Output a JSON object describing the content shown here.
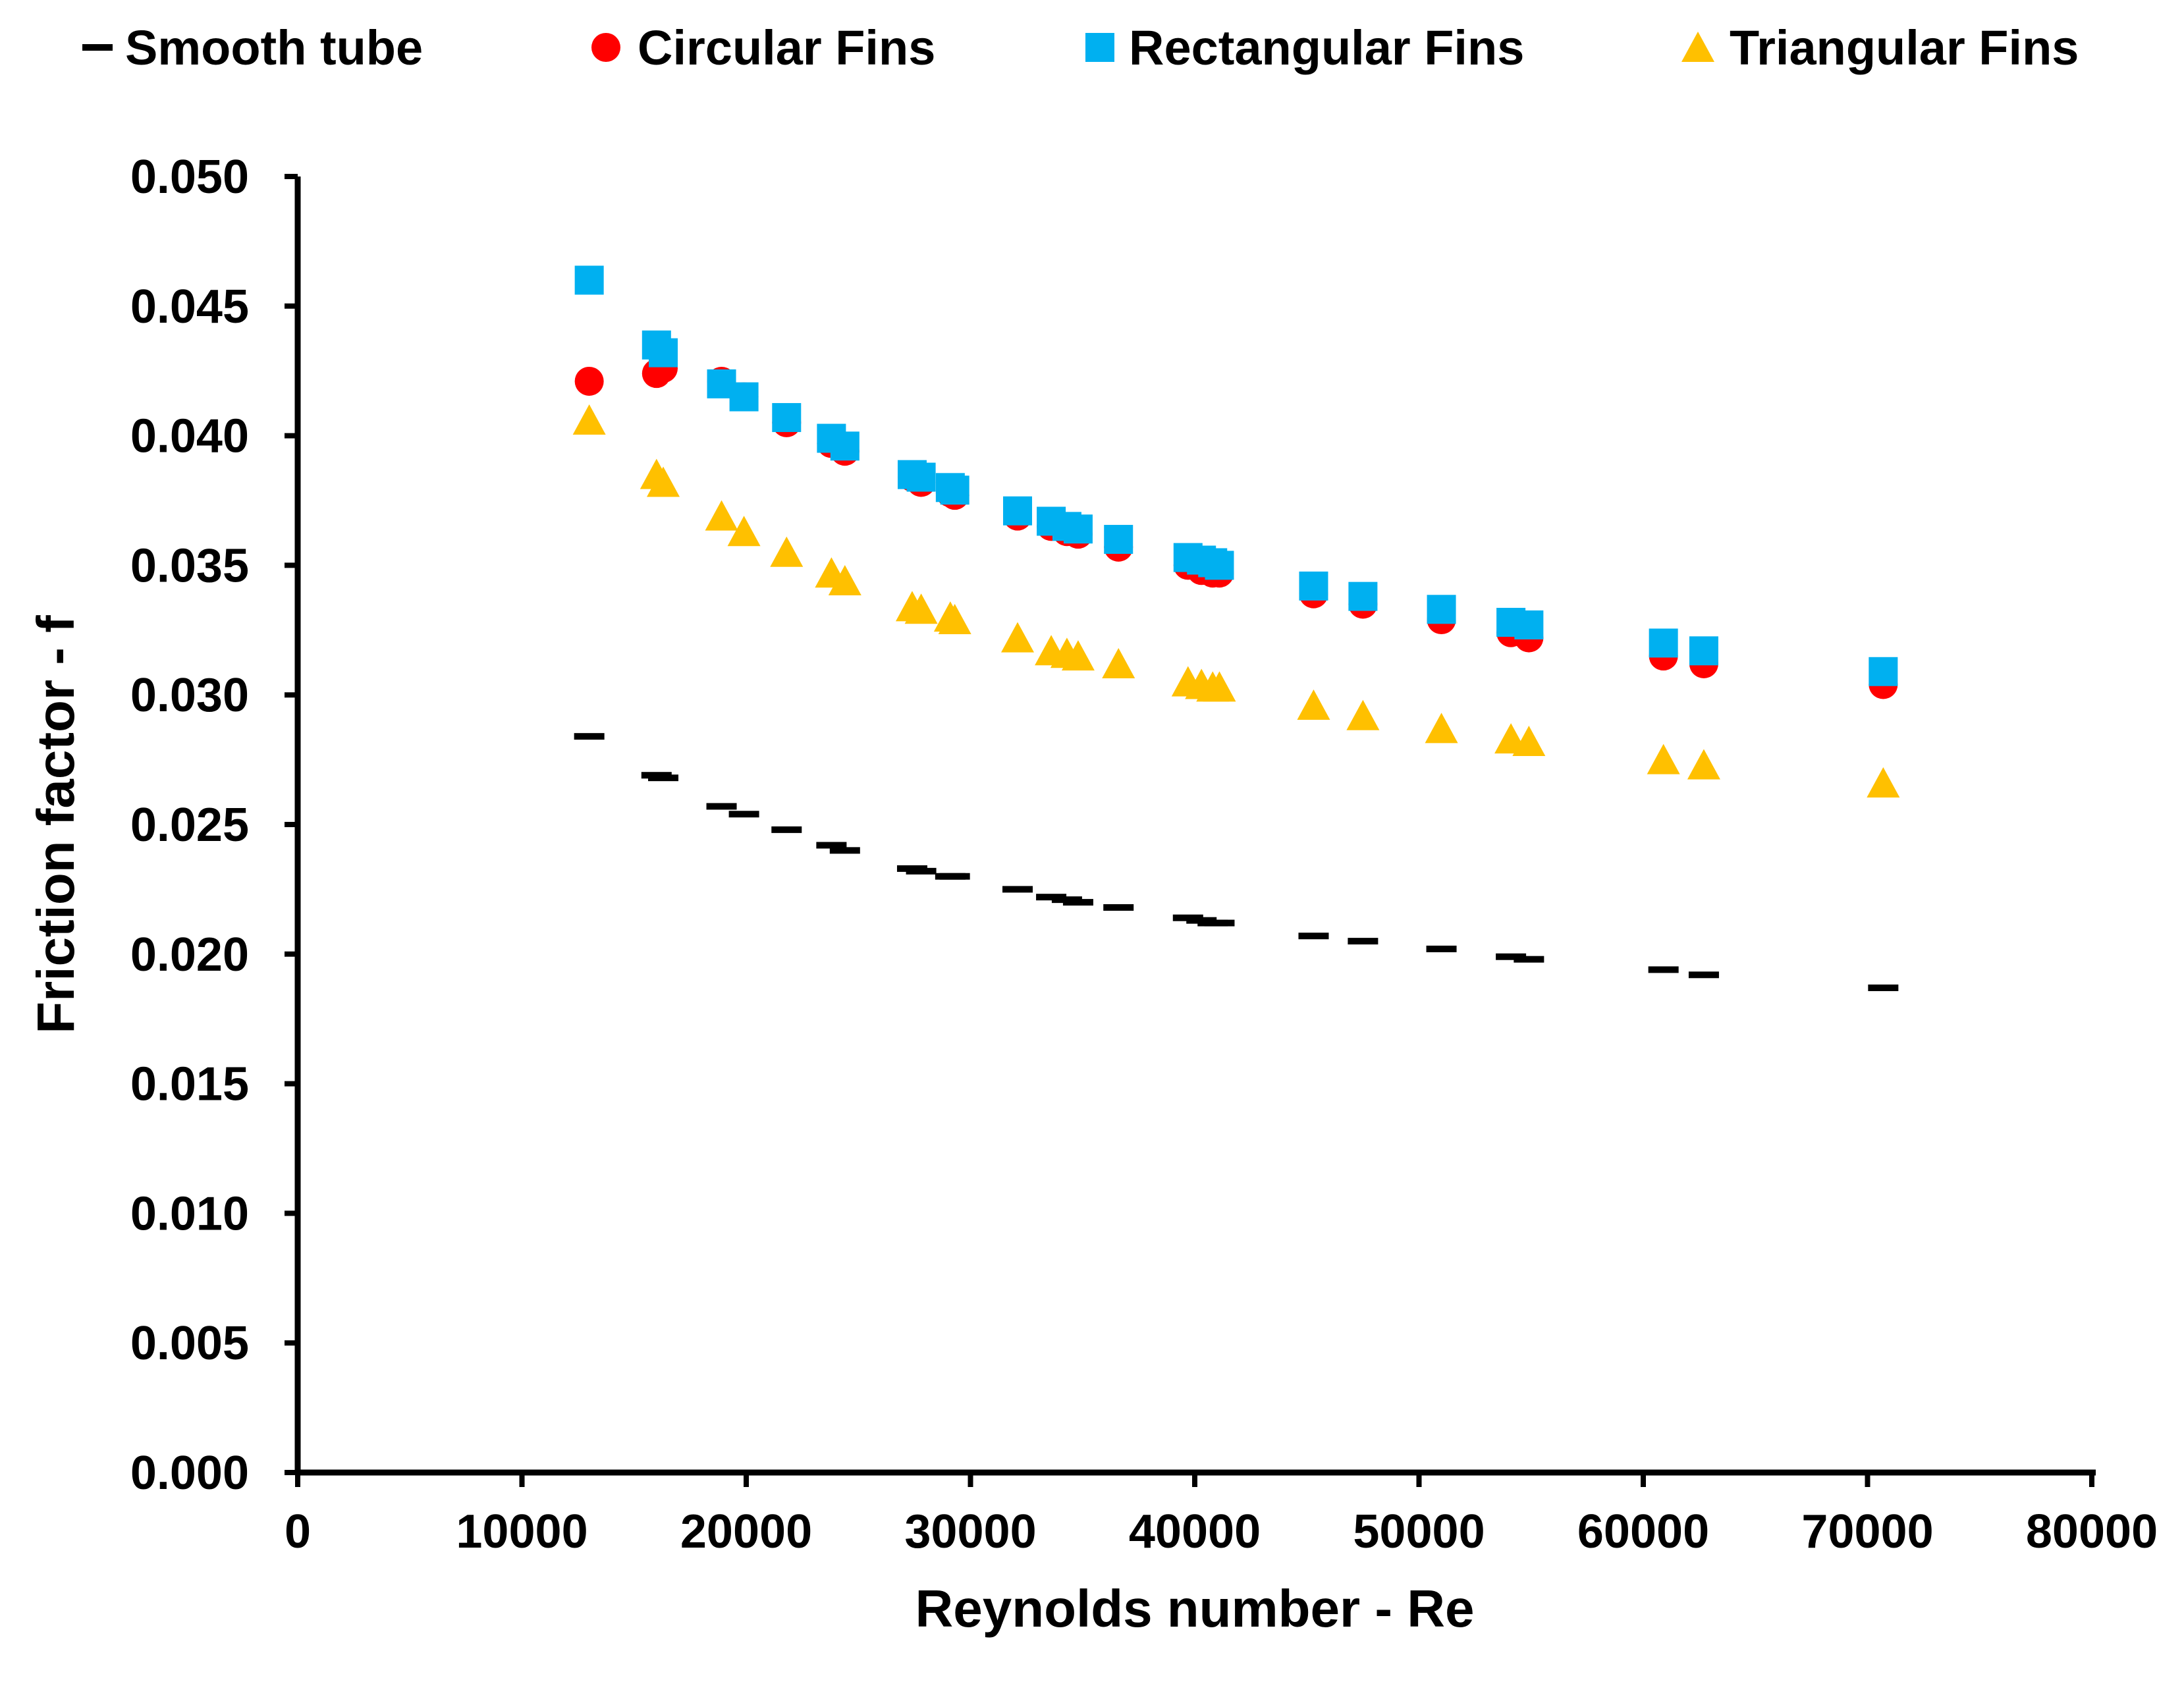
{
  "chart_data": {
    "type": "scatter",
    "title": "",
    "xlabel": "Reynolds number - Re",
    "ylabel": "Friction factor - f",
    "xlim": [
      0,
      80000
    ],
    "ylim": [
      0.0,
      0.05
    ],
    "x_ticks": [
      "0",
      "10000",
      "20000",
      "30000",
      "40000",
      "50000",
      "60000",
      "70000",
      "80000"
    ],
    "y_ticks": [
      "0.000",
      "0.005",
      "0.010",
      "0.015",
      "0.020",
      "0.025",
      "0.030",
      "0.035",
      "0.040",
      "0.045",
      "0.050"
    ],
    "grid": false,
    "legend_position": "top",
    "x": [
      13000,
      16000,
      16300,
      18900,
      19900,
      21800,
      23800,
      24400,
      27400,
      27800,
      29100,
      29300,
      32100,
      33600,
      34300,
      34800,
      36600,
      39700,
      40300,
      40800,
      41100,
      45300,
      47500,
      51000,
      54100,
      54900,
      60900,
      62700,
      70700
    ],
    "series": [
      {
        "name": "Smooth tube",
        "marker": "dash",
        "color": "#000000",
        "values": [
          0.0284,
          0.0269,
          0.0268,
          0.0257,
          0.0254,
          0.0248,
          0.0242,
          0.024,
          0.0233,
          0.0232,
          0.023,
          0.023,
          0.0225,
          0.0222,
          0.0221,
          0.022,
          0.0218,
          0.0214,
          0.0213,
          0.0212,
          0.0212,
          0.0207,
          0.0205,
          0.0202,
          0.0199,
          0.0198,
          0.0194,
          0.0192,
          0.0187
        ]
      },
      {
        "name": "Circular Fins",
        "marker": "circle",
        "color": "#ff0000",
        "values": [
          0.0421,
          0.0424,
          0.0426,
          0.0421,
          0.0415,
          0.0405,
          0.0397,
          0.0394,
          0.0384,
          0.0382,
          0.0378,
          0.0377,
          0.0369,
          0.0365,
          0.0363,
          0.0362,
          0.0357,
          0.035,
          0.0348,
          0.0347,
          0.0347,
          0.0339,
          0.0335,
          0.0329,
          0.0324,
          0.0322,
          0.0315,
          0.0312,
          0.0304
        ]
      },
      {
        "name": "Rectangular Fins",
        "marker": "square",
        "color": "#00b0f0",
        "values": [
          0.046,
          0.0435,
          0.0432,
          0.042,
          0.0415,
          0.0407,
          0.0399,
          0.0396,
          0.0385,
          0.0384,
          0.038,
          0.0379,
          0.0371,
          0.0367,
          0.0365,
          0.0364,
          0.036,
          0.0353,
          0.0352,
          0.0351,
          0.035,
          0.0342,
          0.0338,
          0.0333,
          0.0328,
          0.0327,
          0.032,
          0.0317,
          0.0309
        ]
      },
      {
        "name": "Triangular Fins",
        "marker": "triangle",
        "color": "#ffc000",
        "values": [
          0.0406,
          0.0385,
          0.0382,
          0.0369,
          0.0363,
          0.0355,
          0.0347,
          0.0344,
          0.0334,
          0.0333,
          0.033,
          0.0329,
          0.0322,
          0.0317,
          0.0316,
          0.0315,
          0.0312,
          0.0305,
          0.0304,
          0.0303,
          0.0303,
          0.0296,
          0.0292,
          0.0287,
          0.0283,
          0.0282,
          0.0275,
          0.0273,
          0.0266
        ]
      }
    ]
  }
}
